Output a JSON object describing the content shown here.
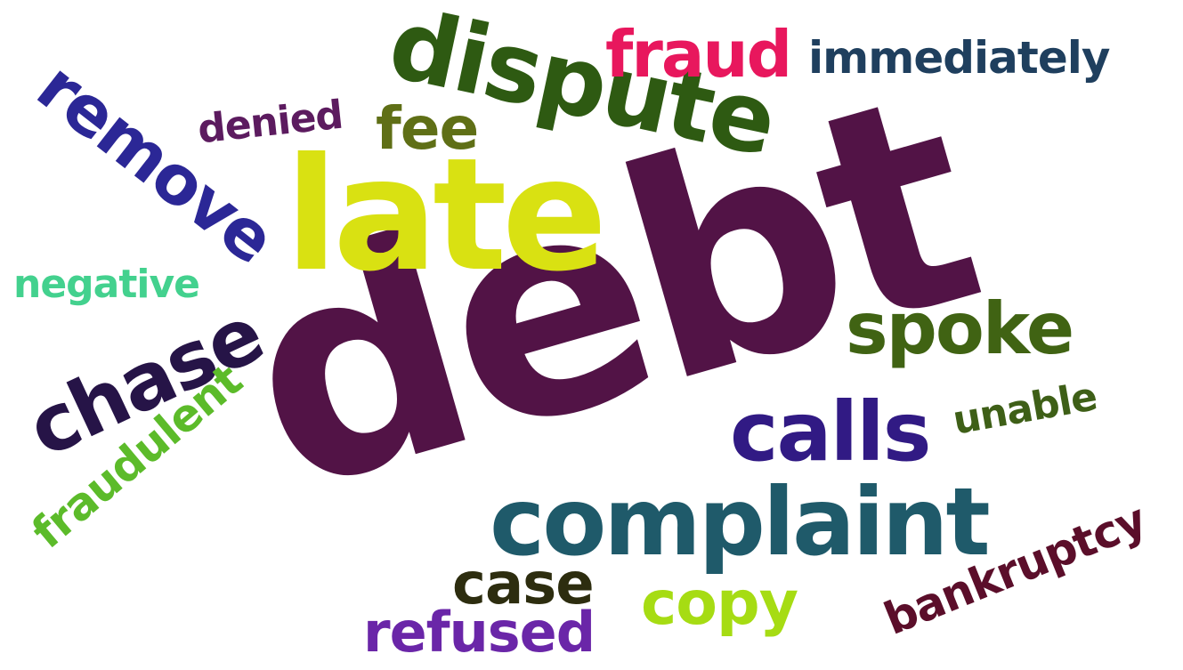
{
  "words": {
    "debt": {
      "text": "debt",
      "color": "#521346"
    },
    "late": {
      "text": "late",
      "color": "#d9e112"
    },
    "dispute": {
      "text": "dispute",
      "color": "#2e5a12"
    },
    "complaint": {
      "text": "complaint",
      "color": "#1f5a6a"
    },
    "chase": {
      "text": "chase",
      "color": "#261447"
    },
    "calls": {
      "text": "calls",
      "color": "#311a84"
    },
    "spoke": {
      "text": "spoke",
      "color": "#406313"
    },
    "remove": {
      "text": "remove",
      "color": "#2b2796"
    },
    "fraud": {
      "text": "fraud",
      "color": "#e8175d"
    },
    "fee": {
      "text": "fee",
      "color": "#5f6f16"
    },
    "immediately": {
      "text": "immediately",
      "color": "#1f3f5e"
    },
    "denied": {
      "text": "denied",
      "color": "#5c1b5f"
    },
    "negative": {
      "text": "negative",
      "color": "#43d18e"
    },
    "fraudulent": {
      "text": "fraudulent",
      "color": "#5cbb2a"
    },
    "unable": {
      "text": "unable",
      "color": "#3e5f17"
    },
    "case": {
      "text": "case",
      "color": "#2d2d0f"
    },
    "copy": {
      "text": "copy",
      "color": "#a6dc13"
    },
    "refused": {
      "text": "refused",
      "color": "#6a26a8"
    },
    "bankruptcy": {
      "text": "bankruptcy",
      "color": "#5b0e2a"
    }
  }
}
